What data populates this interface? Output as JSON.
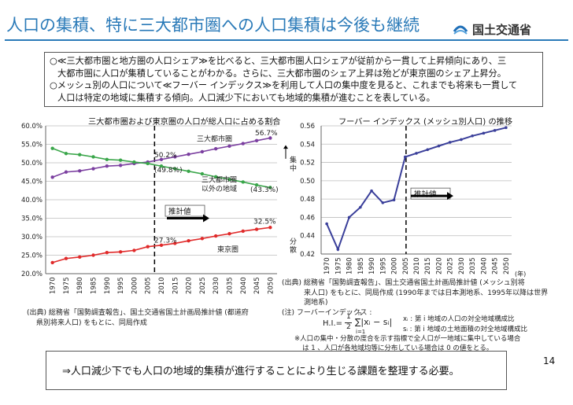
{
  "header": {
    "title": "人口の集積、特に三大都市圏への人口集積は今後も継続",
    "logo_text": "国土交通省",
    "logo_icon": "mlit-logo-icon"
  },
  "summary": {
    "line1": "○≪三大都市圏と地方圏の人口シェア≫を比べると、三大都市圏人口シェアが従前から一貫して上昇傾向にあり、三",
    "line2": "大都市圏に人口が集積していることがわかる。さらに、三大都市圏のシェア上昇は殆どが東京圏のシェア上昇分。",
    "line3": "○メッシュ別の人口について≪フーバー インデックス≫を利用して人口の集中度を見ると、これまでも将来も一貫して",
    "line4": "人口は特定の地域に集積する傾向。人口減少下においても地域的集積が進むことを表している。"
  },
  "chart_data": [
    {
      "type": "line",
      "title": "三大都市圏および東京圏の人口が総人口に占める割合",
      "xlabel": "",
      "ylabel": "",
      "categories": [
        "1970",
        "1975",
        "1980",
        "1985",
        "1990",
        "1995",
        "2000",
        "2005",
        "2010",
        "2015",
        "2020",
        "2025",
        "2030",
        "2035",
        "2040",
        "2045",
        "2050"
      ],
      "y_tick_labels": [
        "60.0%",
        "55.0%",
        "50.0%",
        "45.0%",
        "40.0%",
        "35.0%",
        "30.0%",
        "25.0%",
        "20.0%"
      ],
      "ylim": [
        20,
        60
      ],
      "series": [
        {
          "name": "三大都市圏",
          "color": "#7b3fa0",
          "values": [
            46.1,
            47.5,
            47.8,
            48.4,
            49.1,
            49.3,
            49.8,
            50.2,
            50.9,
            51.6,
            52.3,
            53.0,
            53.8,
            54.5,
            55.2,
            56.0,
            56.7
          ]
        },
        {
          "name": "三大都市圏以外の地域",
          "color": "#3aa64a",
          "values": [
            53.9,
            52.5,
            52.2,
            51.6,
            50.9,
            50.7,
            50.2,
            49.8,
            49.1,
            48.4,
            47.7,
            47.0,
            46.2,
            45.5,
            44.8,
            44.0,
            43.3
          ]
        },
        {
          "name": "東京圏",
          "color": "#e02a2a",
          "values": [
            23.0,
            24.1,
            24.5,
            25.0,
            25.7,
            25.9,
            26.3,
            27.3,
            27.7,
            28.2,
            28.9,
            29.5,
            30.2,
            30.8,
            31.5,
            32.0,
            32.5
          ]
        }
      ],
      "annotations": {
        "tokyo3_label": "三大都市圏",
        "other_label1": "三大都市圏",
        "other_label2": "以外の地域",
        "tokyo_label": "東京圏",
        "v_502": "50.2%",
        "v_498": "(49.8%)",
        "v_567": "56.7%",
        "v_433": "(43.3%)",
        "v_325": "32.5%",
        "v_273": "27.3%",
        "estimate_label": "推計値"
      }
    },
    {
      "type": "line",
      "title": "フーバー インデックス (メッシュ別人口) の推移",
      "xlabel": "",
      "ylabel": "",
      "categories": [
        "1970",
        "1975",
        "1980",
        "1985",
        "1990",
        "1995",
        "2000",
        "2005",
        "2010",
        "2015",
        "2020",
        "2025",
        "2030",
        "2035",
        "2040",
        "2045",
        "2050"
      ],
      "x_unit": "(年)",
      "y_tick_labels": [
        "0.56",
        "0.54",
        "0.52",
        "0.50",
        "0.48",
        "0.46",
        "0.44",
        "0.42"
      ],
      "ylim": [
        0.42,
        0.56
      ],
      "series": [
        {
          "name": "フーバー インデックス",
          "color": "#3a3f9a",
          "values": [
            0.453,
            0.425,
            0.46,
            0.471,
            0.489,
            0.476,
            0.479,
            0.526,
            0.53,
            0.534,
            0.538,
            0.542,
            0.545,
            0.549,
            0.552,
            0.555,
            0.558
          ]
        }
      ],
      "annotations": {
        "axis_note_top": "集中",
        "axis_note_bottom": "分散",
        "estimate_label": "推計値"
      }
    }
  ],
  "sources": {
    "left_line1": "(出典) 総務省「国勢調査報告」、国土交通省国土計画局推計値 (都道府",
    "left_line2": "県別将来人口) をもとに、同局作成",
    "right_line1": "(出典) 総務省「国勢調査報告」、国土交通省国土計画局推計値 (メッシュ別将",
    "right_line2": "来人口) をもとに、同局作成 (1990年までは日本測地系、1995年以降は世界",
    "right_line3": "測地系)",
    "note_title": "(注) フーバーインデックス :",
    "formula_lhs": "H.I.=",
    "formula_half": "1",
    "formula_two": "2",
    "formula_body": "∑|xᵢ − sᵢ|",
    "formula_n": "n",
    "formula_i": "i=1",
    "xi_def": "xᵢ : 第 i 地域の人口の対全地域構成比",
    "si_def": "sᵢ : 第 i 地域の土地面積の対全地域構成比",
    "note_line1": "※人口の集中・分散の度合を示す指標で全人口が一地域に集中している場合",
    "note_line2": "は 1 、人口が各地域均等に分布している場合は 0 の値をとる。"
  },
  "conclusion": "⇒人口減少下でも人口の地域的集積が進行することにより生じる課題を整理する必要。",
  "page_number": "14"
}
